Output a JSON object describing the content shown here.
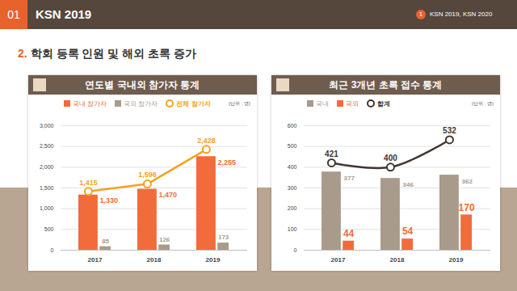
{
  "header": {
    "section": "01",
    "title": "KSN 2019",
    "badge": "1",
    "badge_text": "KSN 2019, KSN 2020"
  },
  "heading": {
    "number": "2.",
    "text": "학회 등록 인원 및 해외 초록 증가"
  },
  "chart_data": [
    {
      "type": "bar",
      "title": "연도별 국내외 참가자 통계",
      "ylabel": "(단위 : 명)",
      "categories": [
        "2017",
        "2018",
        "2019"
      ],
      "series": [
        {
          "name": "국내 참가자",
          "type": "bar",
          "color": "#f26b3a",
          "values": [
            1330,
            1470,
            2255
          ],
          "value_labels": [
            "1,330",
            "1,470",
            "2,255"
          ]
        },
        {
          "name": "국외 참가자",
          "type": "bar",
          "color": "#a99b8b",
          "values": [
            85,
            126,
            173
          ]
        },
        {
          "name": "전체 참가자",
          "type": "line",
          "color": "#f5a21c",
          "marker": "circle",
          "values": [
            1415,
            1596,
            2428
          ],
          "value_labels": [
            "1,415",
            "1,596",
            "2,428"
          ]
        }
      ],
      "ylim": [
        0,
        3000
      ],
      "yticks": [
        0,
        500,
        {
          "value": 1000,
          "label": "1,000"
        },
        {
          "value": 1500,
          "label": "1,500"
        },
        {
          "value": 2000,
          "label": "2,000"
        },
        {
          "value": 2500,
          "label": "2,500"
        },
        {
          "value": 3000,
          "label": "3,000"
        }
      ],
      "grid": true,
      "legend": "top",
      "data_labels": true
    },
    {
      "type": "bar",
      "title": "최근 3개년 초록 접수 통계",
      "ylabel": "(단위 : 명)",
      "categories": [
        "2017",
        "2018",
        "2019"
      ],
      "series": [
        {
          "name": "국내",
          "type": "bar",
          "color": "#a99b8b",
          "values": [
            377,
            346,
            362
          ]
        },
        {
          "name": "국외",
          "type": "bar",
          "color": "#f26b3a",
          "values": [
            44,
            54,
            170
          ]
        },
        {
          "name": "합계",
          "type": "line",
          "color": "#3f3631",
          "marker": "circle",
          "line_style": "smooth",
          "values": [
            421,
            400,
            532
          ]
        }
      ],
      "ylim": [
        0,
        600
      ],
      "yticks": [
        0,
        100,
        200,
        300,
        400,
        500,
        600
      ],
      "grid": true,
      "legend": "top",
      "data_labels": true
    }
  ]
}
